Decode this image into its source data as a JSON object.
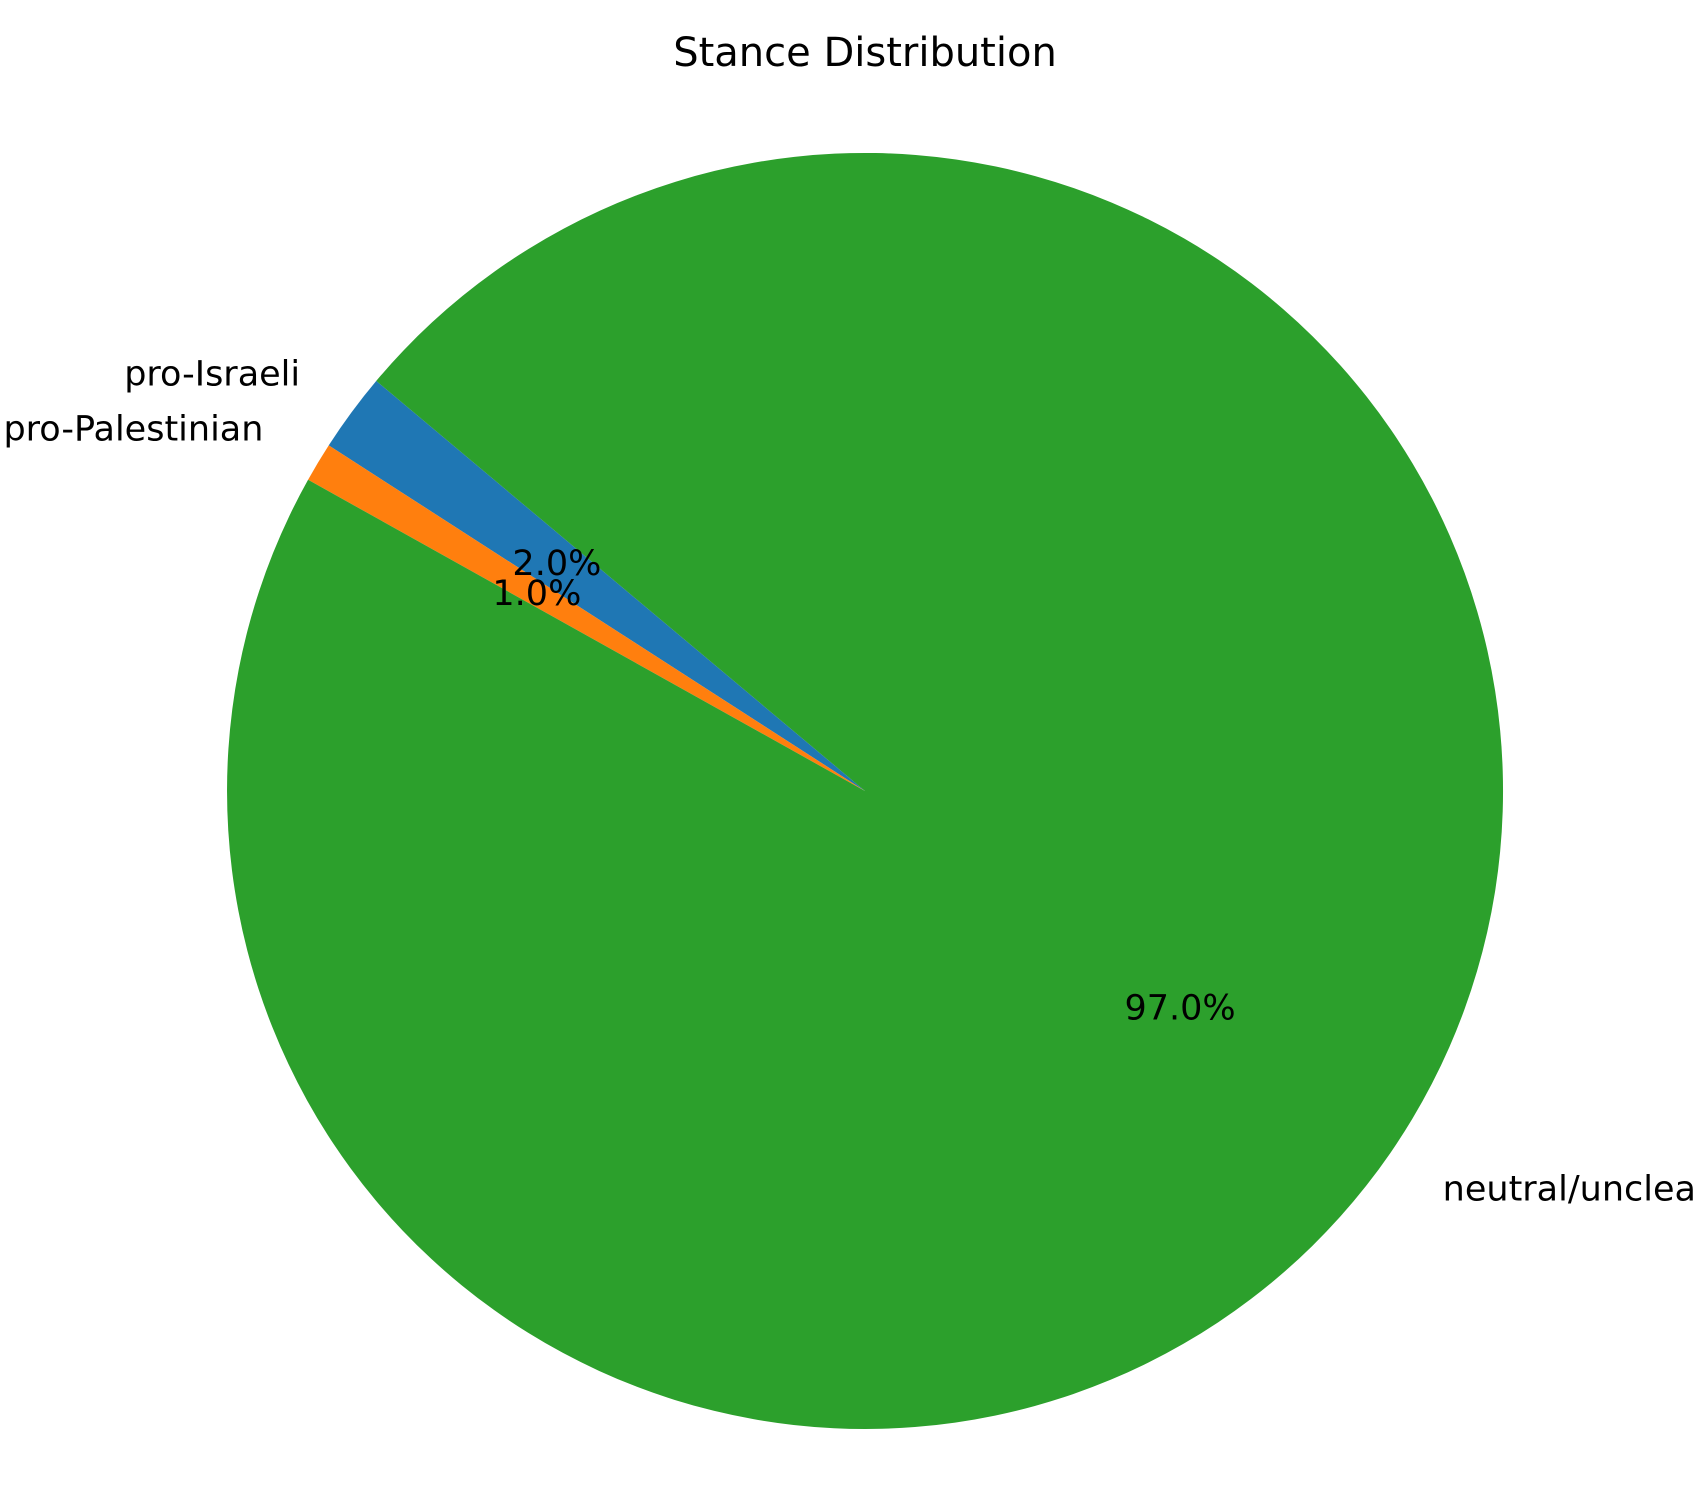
{
  "chart_data": {
    "type": "pie",
    "title": "Stance Distribution",
    "slices": [
      {
        "label": "pro-Israeli",
        "value": 2.0,
        "pct_label": "2.0%",
        "color": "#1f77b4"
      },
      {
        "label": "pro-Palestinian",
        "value": 1.0,
        "pct_label": "1.0%",
        "color": "#ff7f0e"
      },
      {
        "label": "neutral/unclear",
        "value": 97.0,
        "pct_label": "97.0%",
        "color": "#2ca02c"
      }
    ],
    "start_angle_deg": 140,
    "direction": "counterclockwise"
  }
}
